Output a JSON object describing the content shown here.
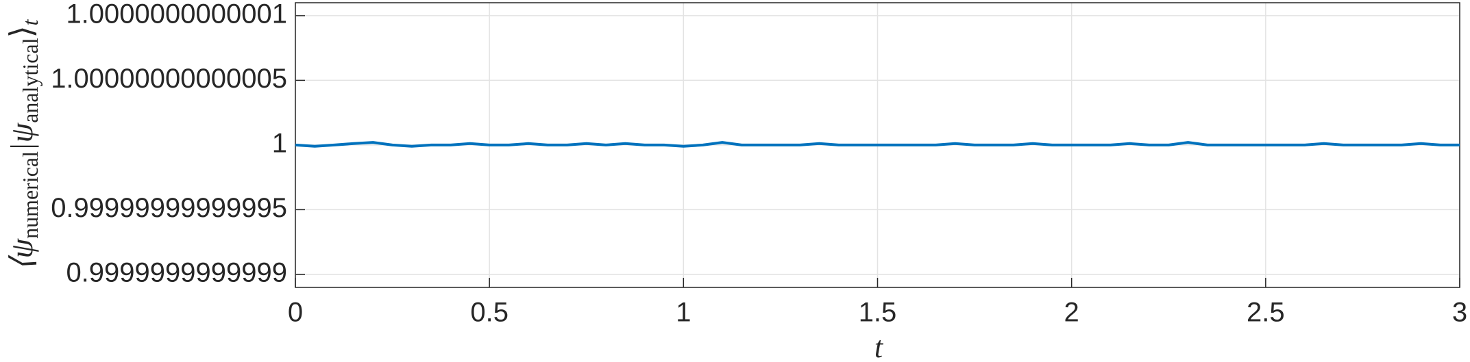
{
  "chart_data": {
    "type": "line",
    "xlabel": "t",
    "ylabel": [
      "⟨ψ",
      "numerical",
      "|ψ",
      "analytical",
      "⟩",
      "t"
    ],
    "x": [
      0,
      0.05,
      0.1,
      0.15,
      0.2,
      0.25,
      0.3,
      0.35,
      0.4,
      0.45,
      0.5,
      0.55,
      0.6,
      0.65,
      0.7,
      0.75,
      0.8,
      0.85,
      0.9,
      0.95,
      1,
      1.05,
      1.1,
      1.15,
      1.2,
      1.25,
      1.3,
      1.35,
      1.4,
      1.45,
      1.5,
      1.55,
      1.6,
      1.65,
      1.7,
      1.75,
      1.8,
      1.85,
      1.9,
      1.95,
      2,
      2.05,
      2.1,
      2.15,
      2.2,
      2.25,
      2.3,
      2.35,
      2.4,
      2.45,
      2.5,
      2.55,
      2.6,
      2.65,
      2.7,
      2.75,
      2.8,
      2.85,
      2.9,
      2.95,
      3
    ],
    "series": [
      {
        "color": "#0072bd",
        "values": [
          1,
          0.999999999999999,
          1,
          1.000000000000001,
          1.000000000000002,
          1,
          0.999999999999999,
          1,
          1,
          1.000000000000001,
          1,
          1,
          1.000000000000001,
          1,
          1,
          1.000000000000001,
          1,
          1.000000000000001,
          1,
          1,
          0.999999999999999,
          1,
          1.000000000000002,
          1,
          1,
          1,
          1,
          1.000000000000001,
          1,
          1,
          1,
          1,
          1,
          1,
          1.000000000000001,
          1,
          1,
          1,
          1.000000000000001,
          1,
          1,
          1,
          1,
          1.000000000000001,
          1,
          1,
          1.000000000000002,
          1,
          1,
          1,
          1,
          1,
          1,
          1.000000000000001,
          1,
          1,
          1,
          1,
          1.000000000000001,
          1,
          1
        ]
      }
    ],
    "xlim": [
      0,
      3
    ],
    "xticks": [
      0,
      0.5,
      1,
      1.5,
      2,
      2.5,
      3
    ],
    "ylim": [
      0.99999999999989,
      1.00000000000011
    ],
    "yticks": [
      {
        "value": 0.9999999999999,
        "label": "0.9999999999999"
      },
      {
        "value": 0.99999999999995,
        "label": "0.99999999999995"
      },
      {
        "value": 1,
        "label": "1"
      },
      {
        "value": 1.00000000000005,
        "label": "1.00000000000005"
      },
      {
        "value": 1.0000000000001,
        "label": "1.0000000000001"
      }
    ],
    "grid": true
  }
}
